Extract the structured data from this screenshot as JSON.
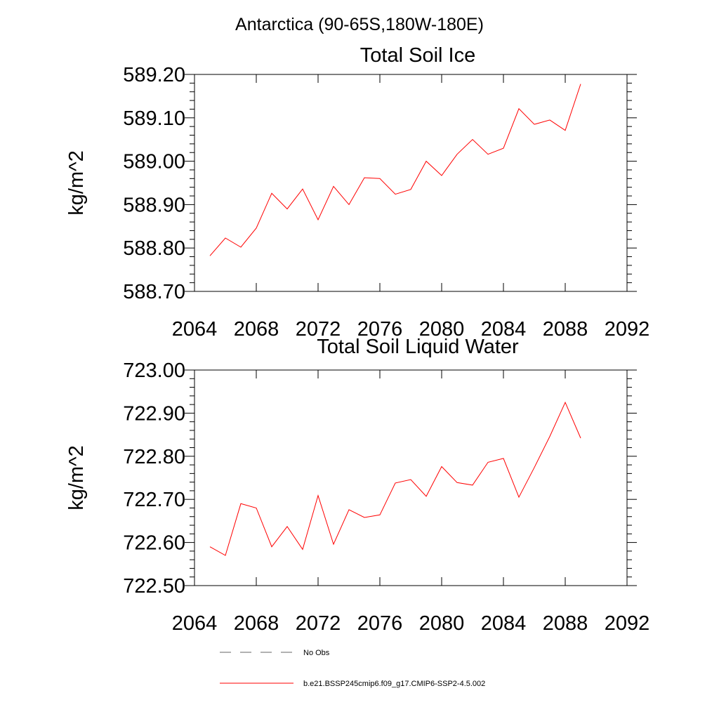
{
  "super_title": "Antarctica (90-65S,180W-180E)",
  "colors": {
    "series": "#ff0000",
    "axis": "#000000",
    "no_obs": "#000000"
  },
  "legend": {
    "entries": [
      {
        "label": "No Obs",
        "style": "dashed",
        "color": "#000000"
      },
      {
        "label": "b.e21.BSSP245cmip6.f09_g17.CMIP6-SSP2-4.5.002",
        "style": "solid",
        "color": "#ff0000"
      }
    ]
  },
  "chart_data": [
    {
      "type": "line",
      "title": "Total Soil Ice",
      "xlabel": "",
      "ylabel": "kg/m^2",
      "xlim": [
        2064,
        2092
      ],
      "ylim": [
        588.7,
        589.2
      ],
      "x_ticks": [
        2064,
        2068,
        2072,
        2076,
        2080,
        2084,
        2088,
        2092
      ],
      "x_tick_labels": [
        "2064",
        "2068",
        "2072",
        "2076",
        "2080",
        "2084",
        "2088",
        "2092"
      ],
      "y_ticks": [
        588.7,
        588.8,
        588.9,
        589.0,
        589.1,
        589.2
      ],
      "y_tick_labels": [
        "588.70",
        "588.80",
        "588.90",
        "589.00",
        "589.10",
        "589.20"
      ],
      "grid": false,
      "series": [
        {
          "x": [
            2065,
            2066,
            2067,
            2068,
            2069,
            2070,
            2071,
            2072,
            2073,
            2074,
            2075,
            2076,
            2077,
            2078,
            2079,
            2080,
            2081,
            2082,
            2083,
            2084,
            2085,
            2086,
            2087,
            2088,
            2089
          ],
          "values": [
            588.782,
            588.823,
            588.802,
            588.846,
            588.926,
            588.89,
            588.936,
            588.865,
            588.942,
            588.9,
            588.962,
            588.96,
            588.924,
            588.935,
            589.0,
            588.967,
            589.016,
            589.05,
            589.016,
            589.03,
            589.121,
            589.085,
            589.095,
            589.071,
            589.178
          ]
        }
      ]
    },
    {
      "type": "line",
      "title": "Total Soil Liquid Water",
      "xlabel": "",
      "ylabel": "kg/m^2",
      "xlim": [
        2064,
        2092
      ],
      "ylim": [
        722.5,
        723.0
      ],
      "x_ticks": [
        2064,
        2068,
        2072,
        2076,
        2080,
        2084,
        2088,
        2092
      ],
      "x_tick_labels": [
        "2064",
        "2068",
        "2072",
        "2076",
        "2080",
        "2084",
        "2088",
        "2092"
      ],
      "y_ticks": [
        722.5,
        722.6,
        722.7,
        722.8,
        722.9,
        723.0
      ],
      "y_tick_labels": [
        "722.50",
        "722.60",
        "722.70",
        "722.80",
        "722.90",
        "723.00"
      ],
      "grid": false,
      "series": [
        {
          "x": [
            2065,
            2066,
            2067,
            2068,
            2069,
            2070,
            2071,
            2072,
            2073,
            2074,
            2075,
            2076,
            2077,
            2078,
            2079,
            2080,
            2081,
            2082,
            2083,
            2084,
            2085,
            2086,
            2087,
            2088,
            2089
          ],
          "values": [
            722.59,
            722.57,
            722.69,
            722.68,
            722.59,
            722.637,
            722.584,
            722.709,
            722.596,
            722.676,
            722.658,
            722.664,
            722.738,
            722.746,
            722.707,
            722.776,
            722.739,
            722.733,
            722.786,
            722.795,
            722.705,
            722.774,
            722.846,
            722.925,
            722.842
          ]
        }
      ]
    }
  ]
}
